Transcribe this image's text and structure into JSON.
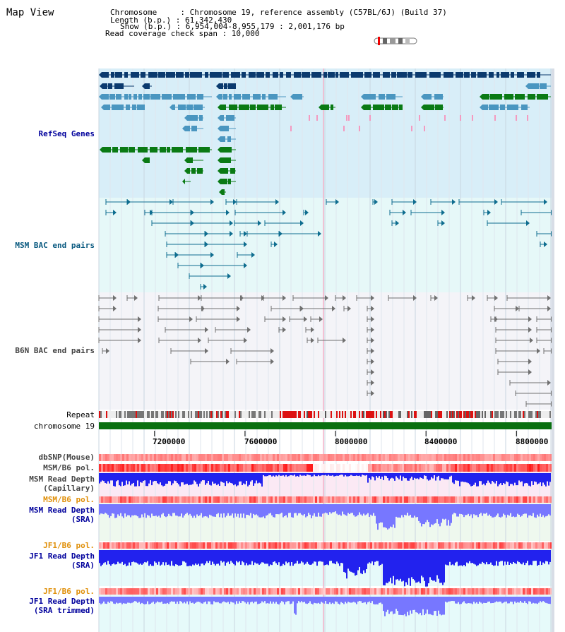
{
  "app": {
    "title": "Map View"
  },
  "header": {
    "chromosome": "Chromosome     : Chromosome 19, reference assembly (C57BL/6J) (Build 37)",
    "length": "Length (b.p.) : 61,342,430",
    "show": "Show (b.p.) : 6,954,004-8,955,179 : 2,001,176 bp",
    "coverage": "Read coverage check span : 10,000"
  },
  "colors": {
    "refseq_bg": "#d8eef8",
    "msm_bac_bg": "#e6f8f8",
    "b6n_bac_bg": "#f4f4f8",
    "navy": "#0b3a6e",
    "steelblue": "#4a96c0",
    "green": "#0a7a14",
    "pink": "#f49ac0",
    "teal": "#0e6d8f",
    "gray": "#707070",
    "chromosome_bar": "#0a7010",
    "depth_dark": "#2222ee",
    "depth_light": "#7777ff",
    "label_blue": "#00009c",
    "label_orange": "#e0900a"
  },
  "tracks": {
    "refseq": "RefSeq Genes",
    "msm_bac": "MSM BAC end pairs",
    "b6n_bac": "B6N BAC end pairs",
    "repeat": "Repeat",
    "chromosome": "chromosome 19",
    "dbsnp": "dbSNP(Mouse)",
    "msm_b6_pol_1": "MSM/B6 pol.",
    "msm_read_depth_cap": "MSM Read Depth\n(Capillary)",
    "msm_b6_pol_2": "MSM/B6 pol.",
    "msm_read_depth_sra": "MSM Read Depth\n(SRA)",
    "jf1_b6_pol_1": "JF1/B6 pol.",
    "jf1_read_depth_sra": "JF1 Read Depth\n(SRA)",
    "jf1_b6_pol_2": "JF1/B6 pol.",
    "jf1_read_depth_trim": "JF1 Read Depth\n(SRA trimmed)"
  },
  "axis": {
    "positions": [
      "7200000",
      "7600000",
      "8000000",
      "8400000",
      "8800000"
    ]
  }
}
